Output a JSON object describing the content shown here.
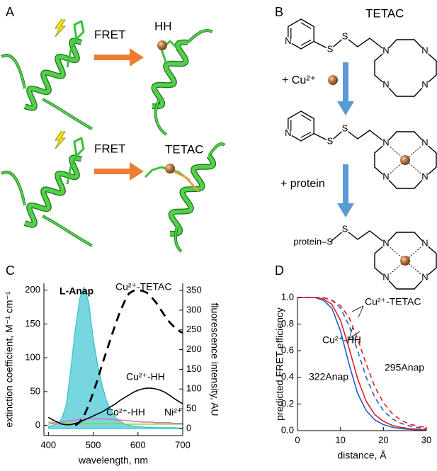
{
  "panel_a": {
    "label": "A",
    "rows": [
      {
        "fret": "FRET",
        "product": "HH"
      },
      {
        "fret": "FRET",
        "product": "TETAC"
      }
    ]
  },
  "panel_b": {
    "label": "B",
    "title": "TETAC",
    "steps": [
      "+ Cu²⁺",
      "+ protein"
    ],
    "protein": "protein–S",
    "molecules": [
      {
        "atoms": [
          "N",
          "S",
          "S",
          "N",
          "N",
          "N",
          "N"
        ]
      },
      {
        "atoms": [
          "N",
          "S",
          "S",
          "N",
          "N",
          "N",
          "N"
        ]
      },
      {
        "atoms": [
          "S",
          "N",
          "N",
          "N",
          "N"
        ]
      }
    ]
  },
  "chart_data": [
    {
      "type": "line",
      "label": "C",
      "xlabel": "wavelength, nm",
      "ylabel": "extinction coefficient, M⁻¹ cm⁻¹",
      "y2label": "fluorescence intensity, AU",
      "x": [
        400,
        410,
        420,
        430,
        440,
        450,
        460,
        470,
        480,
        490,
        500,
        510,
        520,
        530,
        540,
        550,
        560,
        570,
        580,
        590,
        600,
        610,
        620,
        630,
        640,
        650,
        660,
        670,
        680,
        690,
        700
      ],
      "xlim": [
        390,
        700
      ],
      "xticks": [
        400,
        500,
        600,
        700
      ],
      "ylim": [
        -15,
        210
      ],
      "yticks": [
        0,
        50,
        100,
        150,
        200
      ],
      "y2lim": [
        -18,
        368
      ],
      "y2ticks": [
        0,
        50,
        100,
        150,
        200,
        250,
        300,
        350
      ],
      "series": [
        {
          "name": "L-Anap",
          "color": "#2fc0cf",
          "fill": true,
          "axis": "y2",
          "values": [
            5,
            8,
            12,
            25,
            60,
            150,
            250,
            330,
            358,
            320,
            230,
            160,
            110,
            70,
            45,
            28,
            18,
            12,
            8,
            6,
            5,
            4,
            3,
            3,
            2,
            2,
            2,
            2,
            2,
            1,
            1
          ]
        },
        {
          "name": "Ni²⁺",
          "color": "#7fdc2a",
          "values": [
            5,
            4,
            4,
            3,
            3,
            3,
            3,
            3,
            3,
            3,
            3,
            3,
            3,
            3,
            3,
            3,
            3,
            2,
            2,
            2,
            2,
            2,
            2,
            2,
            2,
            2,
            2,
            2,
            2,
            2,
            2
          ]
        },
        {
          "name": "Co²⁺-HH",
          "color": "#e070b8",
          "values": [
            2,
            3,
            4,
            5,
            6,
            7,
            8,
            9,
            10,
            10,
            10,
            10,
            10,
            9,
            9,
            8,
            8,
            7,
            7,
            6,
            6,
            5,
            5,
            5,
            4,
            4,
            4,
            4,
            3,
            3,
            3
          ]
        },
        {
          "name": "Cu²⁺-TETAC",
          "color": "#000000",
          "dash": true,
          "values": [
            null,
            null,
            null,
            null,
            null,
            null,
            0,
            5,
            15,
            30,
            48,
            68,
            90,
            110,
            130,
            150,
            168,
            183,
            195,
            199,
            200,
            199,
            196,
            190,
            182,
            172,
            162,
            153,
            146,
            140,
            137
          ]
        },
        {
          "name": "Cu²⁺-HH",
          "color": "#000000",
          "values": [
            12,
            8,
            5,
            2,
            1,
            1,
            3,
            5,
            8,
            11,
            14,
            17,
            20,
            24,
            28,
            32,
            37,
            41,
            45,
            49,
            52,
            54,
            55,
            55,
            54,
            52,
            49,
            45,
            40,
            36,
            32
          ]
        }
      ]
    },
    {
      "type": "line",
      "label": "D",
      "xlabel": "distance, Å",
      "ylabel": "predicted FRET efficiency",
      "x": [
        0,
        2,
        4,
        6,
        8,
        10,
        12,
        14,
        16,
        18,
        20,
        22,
        24,
        26,
        28,
        30
      ],
      "xlim": [
        0,
        30
      ],
      "xticks": [
        0,
        10,
        20,
        30
      ],
      "ylim": [
        0,
        1
      ],
      "yticks": [
        {
          "value": 0,
          "label": "0.0"
        },
        {
          "value": 0.2,
          "label": "0.2"
        },
        {
          "value": 0.4,
          "label": "0.4"
        },
        {
          "value": 0.6,
          "label": "0.6"
        },
        {
          "value": 0.8,
          "label": "0.8"
        },
        {
          "value": 1,
          "label": "1.0"
        }
      ],
      "series": [
        {
          "color": "#1f5fd0",
          "values": [
            1,
            1,
            1,
            0.98,
            0.92,
            0.75,
            0.5,
            0.28,
            0.15,
            0.08,
            0.045,
            0.026,
            0.015,
            0.01,
            0.006,
            0.004
          ]
        },
        {
          "color": "#e02020",
          "values": [
            1,
            1,
            1,
            0.99,
            0.95,
            0.83,
            0.62,
            0.39,
            0.22,
            0.12,
            0.07,
            0.04,
            0.025,
            0.015,
            0.01,
            0.007
          ]
        },
        {
          "color": "#1f5fd0",
          "dash": true,
          "values": [
            1,
            1,
            1,
            1,
            0.98,
            0.92,
            0.79,
            0.6,
            0.4,
            0.25,
            0.15,
            0.09,
            0.056,
            0.036,
            0.023,
            0.015
          ]
        },
        {
          "color": "#e02020",
          "dash": true,
          "values": [
            1,
            1,
            1,
            1,
            0.98,
            0.94,
            0.85,
            0.69,
            0.5,
            0.33,
            0.21,
            0.13,
            0.08,
            0.05,
            0.034,
            0.023
          ]
        }
      ],
      "annotations": [
        {
          "text": "Cu²⁺-TETAC",
          "color": "#000000"
        },
        {
          "text": "Cu²⁺-HH",
          "color": "#000000"
        },
        {
          "text": "322Anap",
          "color": "#1f5fd0"
        },
        {
          "text": "295Anap",
          "color": "#e02020"
        }
      ]
    }
  ]
}
